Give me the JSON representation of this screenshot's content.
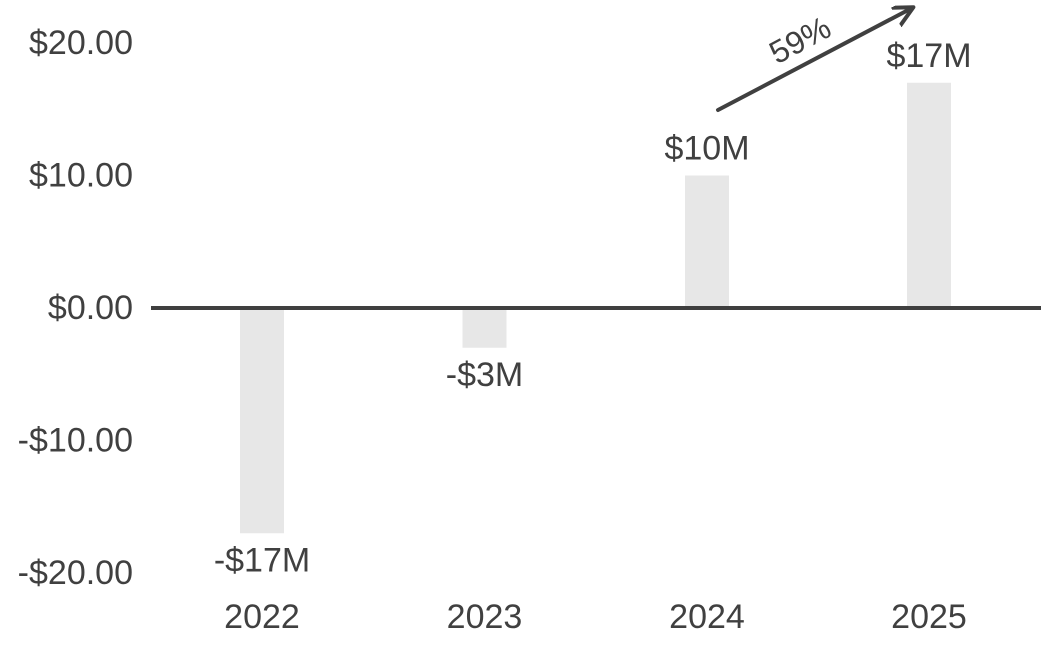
{
  "chart_data": {
    "type": "bar",
    "title": "",
    "categories": [
      "2022",
      "2023",
      "2024",
      "2025"
    ],
    "values": [
      -17,
      -3,
      10,
      17
    ],
    "value_labels": [
      "-$17M",
      "-$3M",
      "$10M",
      "$17M"
    ],
    "yticks": [
      {
        "value": 20,
        "label": "$20.00"
      },
      {
        "value": 10,
        "label": "$10.00"
      },
      {
        "value": 0,
        "label": "$0.00"
      },
      {
        "value": -10,
        "label": "-$10.00"
      },
      {
        "value": -20,
        "label": "-$20.00"
      }
    ],
    "ylim": [
      -20,
      20
    ],
    "grid": false,
    "legend": "none",
    "annotation": {
      "label": "59%",
      "from_category": "2024",
      "to_category": "2025",
      "direction": "up-right"
    },
    "colors": {
      "bar": "#e7e7e7",
      "axis_line": "#3f3f3f",
      "arrow": "#404040",
      "text": "#404040"
    }
  }
}
